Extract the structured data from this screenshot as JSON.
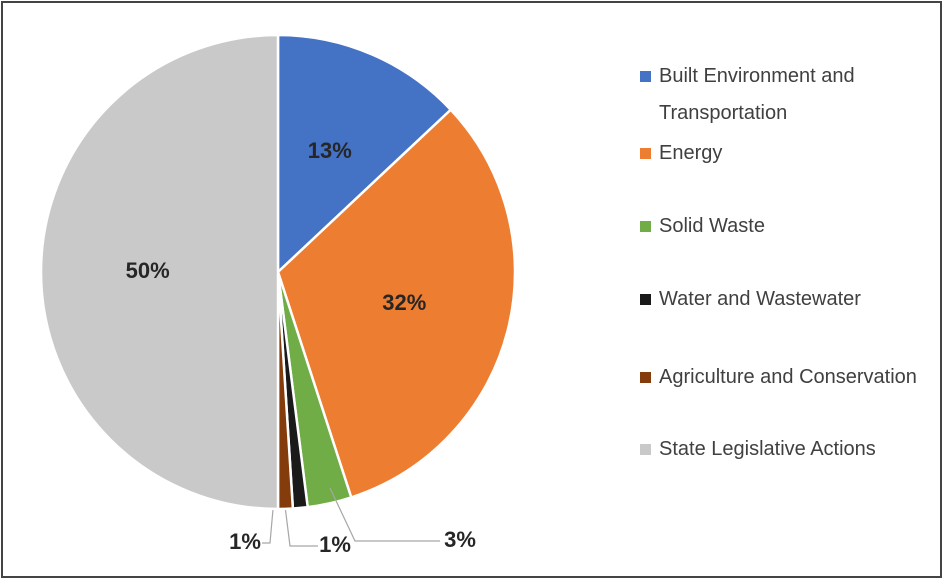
{
  "chart_data": {
    "type": "pie",
    "categories": [
      "Built Environment and Transportation",
      "Energy",
      "Solid Waste",
      "Water and Wastewater",
      "Agriculture and Conservation",
      "State Legislative Actions"
    ],
    "values": [
      13,
      32,
      3,
      1,
      1,
      50
    ],
    "value_labels": [
      "13%",
      "32%",
      "3%",
      "1%",
      "1%",
      "50%"
    ],
    "colors": [
      "#4472c4",
      "#ed7d31",
      "#70ad47",
      "#1a1a1a",
      "#843c0c",
      "#c9c9c9"
    ],
    "legend": "right"
  }
}
